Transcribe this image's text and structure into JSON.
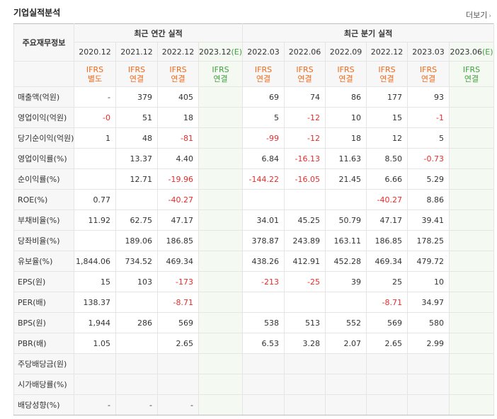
{
  "title": "기업실적분석",
  "more_label": "더보기",
  "label_header": "주요재무정보",
  "annual_header": "최근 연간 실적",
  "quarter_header": "최근 분기 실적",
  "periods": [
    {
      "label": "2020.12",
      "basis": "IFRS",
      "type": "별도",
      "estimate": false
    },
    {
      "label": "2021.12",
      "basis": "IFRS",
      "type": "연결",
      "estimate": false
    },
    {
      "label": "2022.12",
      "basis": "IFRS",
      "type": "연결",
      "estimate": false
    },
    {
      "label": "2023.12(E)",
      "basis": "IFRS",
      "type": "연결",
      "estimate": true
    },
    {
      "label": "2022.03",
      "basis": "IFRS",
      "type": "연결",
      "estimate": false
    },
    {
      "label": "2022.06",
      "basis": "IFRS",
      "type": "연결",
      "estimate": false
    },
    {
      "label": "2022.09",
      "basis": "IFRS",
      "type": "연결",
      "estimate": false
    },
    {
      "label": "2022.12",
      "basis": "IFRS",
      "type": "연결",
      "estimate": false
    },
    {
      "label": "2023.03",
      "basis": "IFRS",
      "type": "연결",
      "estimate": false
    },
    {
      "label": "2023.06(E)",
      "basis": "IFRS",
      "type": "연결",
      "estimate": true
    }
  ],
  "rows": [
    {
      "label": "매출액(억원)",
      "values": [
        "-",
        "379",
        "405",
        "",
        "69",
        "74",
        "86",
        "177",
        "93",
        ""
      ]
    },
    {
      "label": "영업이익(억원)",
      "values": [
        "-0",
        "51",
        "18",
        "",
        "5",
        "-12",
        "10",
        "15",
        "-1",
        ""
      ]
    },
    {
      "label": "당기순이익(억원)",
      "values": [
        "1",
        "48",
        "-81",
        "",
        "-99",
        "-12",
        "18",
        "12",
        "5",
        ""
      ]
    },
    {
      "label": "영업이익률(%)",
      "values": [
        "",
        "13.37",
        "4.40",
        "",
        "6.84",
        "-16.13",
        "11.63",
        "8.50",
        "-0.73",
        ""
      ],
      "group_top": true
    },
    {
      "label": "순이익률(%)",
      "values": [
        "",
        "12.71",
        "-19.96",
        "",
        "-144.22",
        "-16.05",
        "21.45",
        "6.66",
        "5.29",
        ""
      ]
    },
    {
      "label": "ROE(%)",
      "values": [
        "0.77",
        "",
        "-40.27",
        "",
        "",
        "",
        "",
        "-40.27",
        "8.86",
        ""
      ]
    },
    {
      "label": "부채비율(%)",
      "values": [
        "11.92",
        "62.75",
        "47.17",
        "",
        "34.01",
        "45.25",
        "50.79",
        "47.17",
        "39.41",
        ""
      ],
      "group_top": true
    },
    {
      "label": "당좌비율(%)",
      "values": [
        "",
        "189.06",
        "186.85",
        "",
        "378.87",
        "243.89",
        "163.11",
        "186.85",
        "178.25",
        ""
      ]
    },
    {
      "label": "유보율(%)",
      "values": [
        "1,844.06",
        "734.52",
        "469.34",
        "",
        "438.26",
        "412.91",
        "452.28",
        "469.34",
        "479.72",
        ""
      ]
    },
    {
      "label": "EPS(원)",
      "values": [
        "15",
        "103",
        "-173",
        "",
        "-213",
        "-25",
        "39",
        "25",
        "10",
        ""
      ],
      "group_top": true
    },
    {
      "label": "PER(배)",
      "values": [
        "138.37",
        "",
        "-8.71",
        "",
        "",
        "",
        "",
        "-8.71",
        "34.97",
        ""
      ]
    },
    {
      "label": "BPS(원)",
      "values": [
        "1,944",
        "286",
        "569",
        "",
        "538",
        "513",
        "552",
        "569",
        "580",
        ""
      ]
    },
    {
      "label": "PBR(배)",
      "values": [
        "1.05",
        "",
        "2.65",
        "",
        "6.53",
        "3.28",
        "2.07",
        "2.65",
        "2.99",
        ""
      ]
    },
    {
      "label": "주당배당금(원)",
      "values": [
        "",
        "",
        "",
        "",
        "",
        "",
        "",
        "",
        "",
        ""
      ],
      "group_top": true,
      "grey": true
    },
    {
      "label": "시가배당률(%)",
      "values": [
        "",
        "",
        "",
        "",
        "",
        "",
        "",
        "",
        "",
        ""
      ],
      "grey": true
    },
    {
      "label": "배당성향(%)",
      "values": [
        "-",
        "-",
        "-",
        "",
        "",
        "",
        "",
        "",
        "",
        ""
      ],
      "grey": true
    }
  ],
  "colors": {
    "negative": "#e82b2b",
    "ifrs": "#f06a1b",
    "estimate": "#40a040"
  },
  "icons": {
    "more": "chevron-right-icon"
  }
}
